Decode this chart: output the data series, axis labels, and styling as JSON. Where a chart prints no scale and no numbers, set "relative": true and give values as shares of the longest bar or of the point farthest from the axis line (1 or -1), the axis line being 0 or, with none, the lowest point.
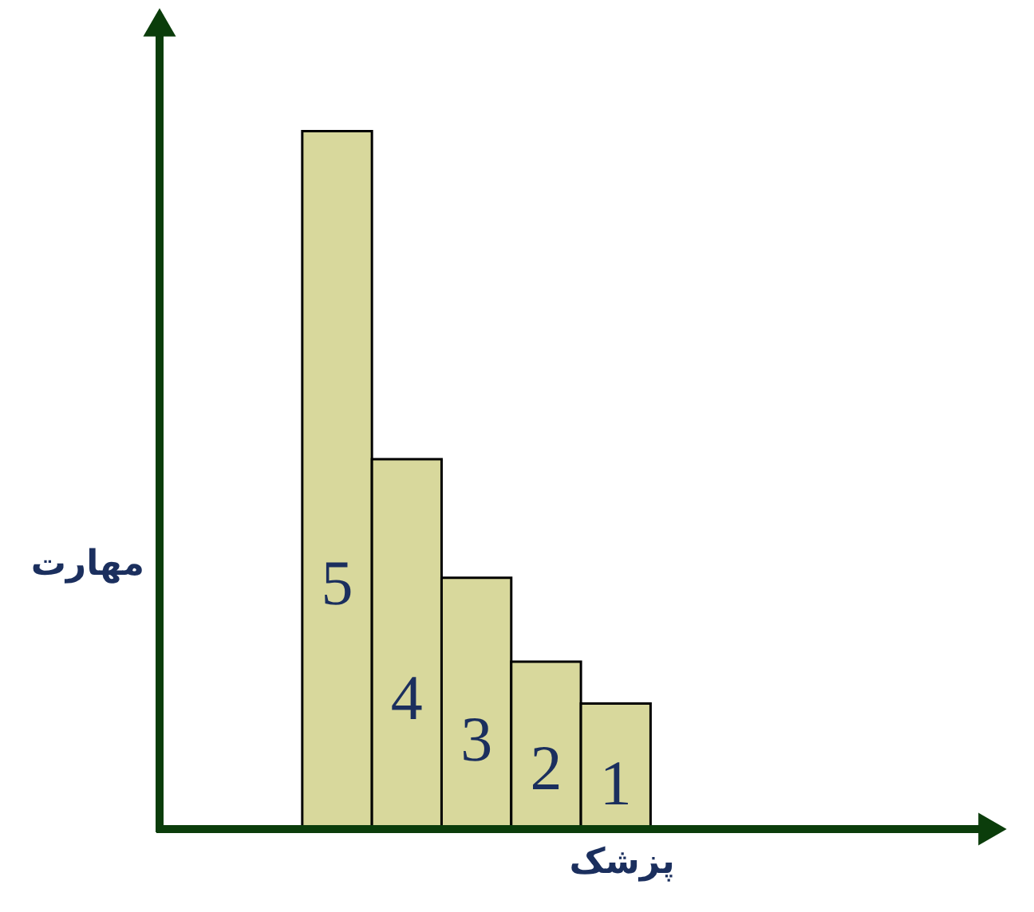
{
  "chart_data": {
    "type": "bar",
    "relative": true,
    "categories": [
      "5",
      "4",
      "3",
      "2",
      "1"
    ],
    "values": [
      1,
      0.53,
      0.36,
      0.24,
      0.18
    ],
    "color": "#d8d89c",
    "xlabel": "پزشک",
    "ylabel": "مهارت"
  }
}
